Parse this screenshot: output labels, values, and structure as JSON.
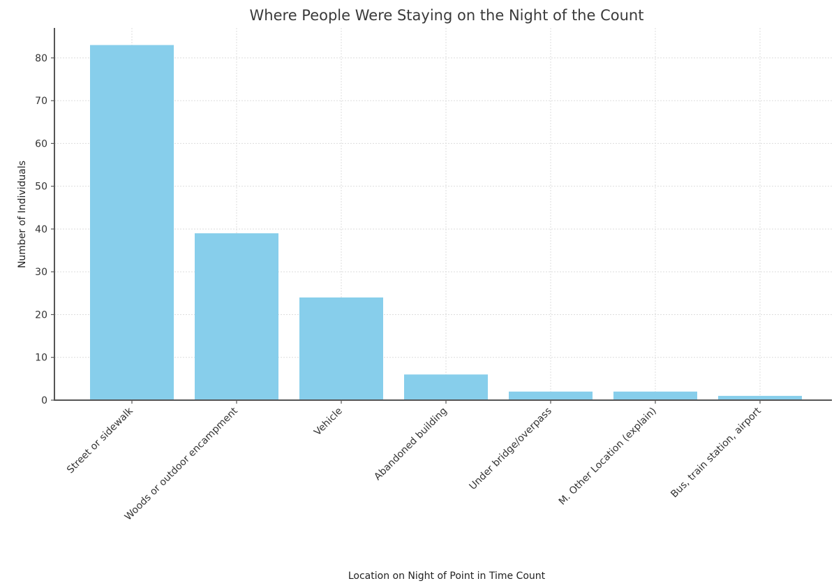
{
  "chart_data": {
    "type": "bar",
    "title": "Where People Were Staying on the Night of the Count",
    "xlabel": "Location on Night of Point in Time Count",
    "ylabel": "Number of Individuals",
    "categories": [
      "Street or sidewalk",
      "Woods or outdoor encampment",
      "Vehicle",
      "Abandoned building",
      "Under bridge/overpass",
      "M. Other Location (explain)",
      "Bus, train station, airport"
    ],
    "values": [
      83,
      39,
      24,
      6,
      2,
      2,
      1
    ],
    "ylim": [
      0,
      87
    ],
    "yticks": [
      0,
      10,
      20,
      30,
      40,
      50,
      60,
      70,
      80
    ],
    "grid": true,
    "colors": {
      "bar": "#87ceeb",
      "axis": "#555555",
      "grid": "#dddddd"
    }
  }
}
